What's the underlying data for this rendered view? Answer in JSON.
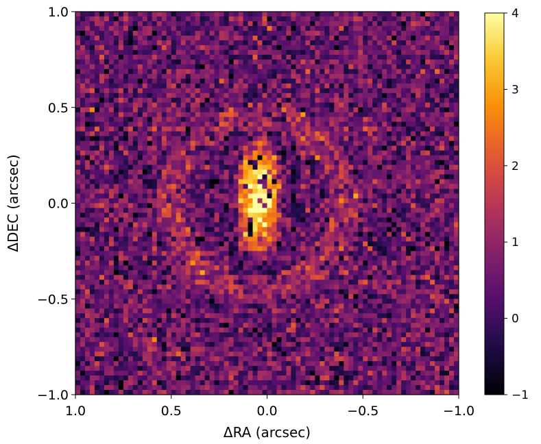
{
  "chart_data": {
    "type": "heatmap",
    "title": "",
    "xlabel": "ΔRA (arcsec)",
    "ylabel": "ΔDEC (arcsec)",
    "xlim": [
      1.0,
      -1.0
    ],
    "ylim": [
      -1.0,
      1.0
    ],
    "x_inverted": true,
    "x_ticks": [
      1.0,
      0.5,
      0.0,
      -0.5,
      -1.0
    ],
    "x_tick_labels": [
      "1.0",
      "0.5",
      "0.0",
      "−0.5",
      "−1.0"
    ],
    "y_ticks": [
      1.0,
      0.5,
      0.0,
      -0.5,
      -1.0
    ],
    "y_tick_labels": [
      "1.0",
      "0.5",
      "0.0",
      "−0.5",
      "−1.0"
    ],
    "grid": false,
    "colormap": "inferno",
    "colorbar": {
      "vmin": -1,
      "vmax": 4,
      "ticks": [
        4,
        3,
        2,
        1,
        0,
        -1
      ],
      "tick_labels": [
        "4",
        "3",
        "2",
        "1",
        "0",
        "−1"
      ]
    },
    "pixel_grid": [
      80,
      80
    ],
    "structure": {
      "background_level": 0.5,
      "noise_sigma": 0.6,
      "central_source_center": [
        0.04,
        0.03
      ],
      "central_source_peak": 4.0,
      "central_source_semi_axes_arcsec": [
        0.09,
        0.25
      ],
      "dark_ring_level": -0.8,
      "faint_arc_level": 1.3
    }
  }
}
